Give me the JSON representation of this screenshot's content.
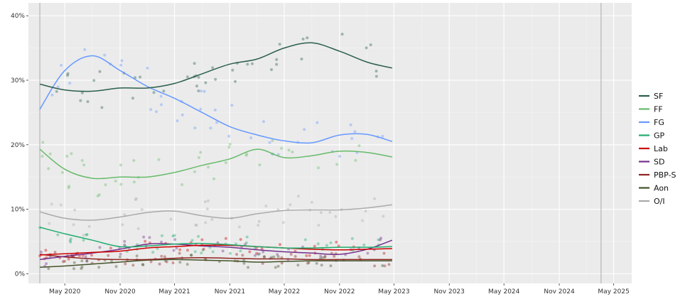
{
  "chart_data": {
    "type": "line",
    "title": "",
    "xlabel": "",
    "ylabel": "",
    "ylim": [
      -1.5,
      42
    ],
    "xlim": [
      "2020-01-01",
      "2025-06-30"
    ],
    "grid": true,
    "legend_position": "right",
    "y_ticks": [
      {
        "value": 0,
        "label": "0%"
      },
      {
        "value": 10,
        "label": "10%"
      },
      {
        "value": 20,
        "label": "20%"
      },
      {
        "value": 30,
        "label": "30%"
      },
      {
        "value": 40,
        "label": "40%"
      }
    ],
    "x_ticks": [
      {
        "date": "2020-05-01",
        "label": "May 2020"
      },
      {
        "date": "2020-11-01",
        "label": "Nov 2020"
      },
      {
        "date": "2021-05-01",
        "label": "May 2021"
      },
      {
        "date": "2021-11-01",
        "label": "Nov 2021"
      },
      {
        "date": "2022-05-01",
        "label": "May 2022"
      },
      {
        "date": "2022-11-01",
        "label": "Nov 2022"
      },
      {
        "date": "2023-05-01",
        "label": "May 2023"
      },
      {
        "date": "2023-11-01",
        "label": "Nov 2023"
      },
      {
        "date": "2024-05-01",
        "label": "May 2024"
      },
      {
        "date": "2024-11-01",
        "label": "Nov 2024"
      },
      {
        "date": "2025-05-01",
        "label": "May 2025"
      }
    ],
    "reference_lines": [
      "2020-02-08",
      "2025-03-20"
    ],
    "x": [
      "2020-02-08",
      "2020-05-01",
      "2020-08-01",
      "2020-11-01",
      "2021-02-01",
      "2021-05-01",
      "2021-08-01",
      "2021-11-01",
      "2022-02-01",
      "2022-05-01",
      "2022-08-01",
      "2022-11-01",
      "2023-02-01",
      "2023-04-25"
    ],
    "series": [
      {
        "name": "SF",
        "color": "#2b5f4b",
        "values": [
          29.4,
          28.5,
          28.3,
          28.8,
          28.8,
          29.5,
          31.0,
          32.5,
          33.3,
          35.0,
          35.8,
          34.5,
          32.8,
          31.9
        ]
      },
      {
        "name": "FF",
        "color": "#66bb6a",
        "values": [
          19.3,
          16.2,
          14.8,
          15.0,
          15.0,
          15.7,
          16.8,
          17.8,
          19.3,
          18.0,
          18.3,
          19.0,
          18.8,
          18.1
        ]
      },
      {
        "name": "FG",
        "color": "#6699ff",
        "values": [
          25.5,
          31.5,
          33.8,
          31.5,
          29.0,
          27.2,
          25.0,
          22.8,
          21.5,
          20.6,
          20.3,
          21.5,
          21.6,
          20.5
        ]
      },
      {
        "name": "GP",
        "color": "#22ac6f",
        "values": [
          7.2,
          6.2,
          5.2,
          4.2,
          4.3,
          4.6,
          4.7,
          4.5,
          4.2,
          4.0,
          4.0,
          4.1,
          4.1,
          4.2
        ]
      },
      {
        "name": "Lab",
        "color": "#cc0000",
        "values": [
          2.9,
          3.1,
          3.3,
          3.5,
          4.0,
          4.2,
          4.4,
          4.4,
          4.2,
          4.0,
          3.8,
          3.7,
          3.8,
          3.9
        ]
      },
      {
        "name": "SD",
        "color": "#752f8b",
        "values": [
          2.2,
          2.7,
          3.2,
          3.8,
          4.6,
          4.6,
          4.3,
          4.1,
          3.7,
          3.4,
          3.2,
          3.0,
          3.8,
          5.2
        ]
      },
      {
        "name": "PBP-S",
        "color": "#8e2420",
        "values": [
          3.0,
          2.6,
          2.3,
          2.2,
          2.2,
          2.4,
          2.5,
          2.4,
          2.3,
          2.3,
          2.2,
          2.2,
          2.2,
          2.2
        ]
      },
      {
        "name": "Aon",
        "color": "#44532a",
        "values": [
          1.0,
          1.2,
          1.5,
          1.8,
          2.1,
          2.2,
          2.1,
          2.0,
          1.8,
          1.9,
          2.0,
          2.0,
          2.0,
          2.0
        ]
      },
      {
        "name": "O/I",
        "color": "#aaaaaa",
        "values": [
          9.6,
          8.6,
          8.3,
          8.8,
          9.5,
          9.7,
          9.0,
          8.6,
          9.3,
          9.8,
          9.9,
          9.9,
          10.2,
          10.7
        ]
      }
    ]
  }
}
